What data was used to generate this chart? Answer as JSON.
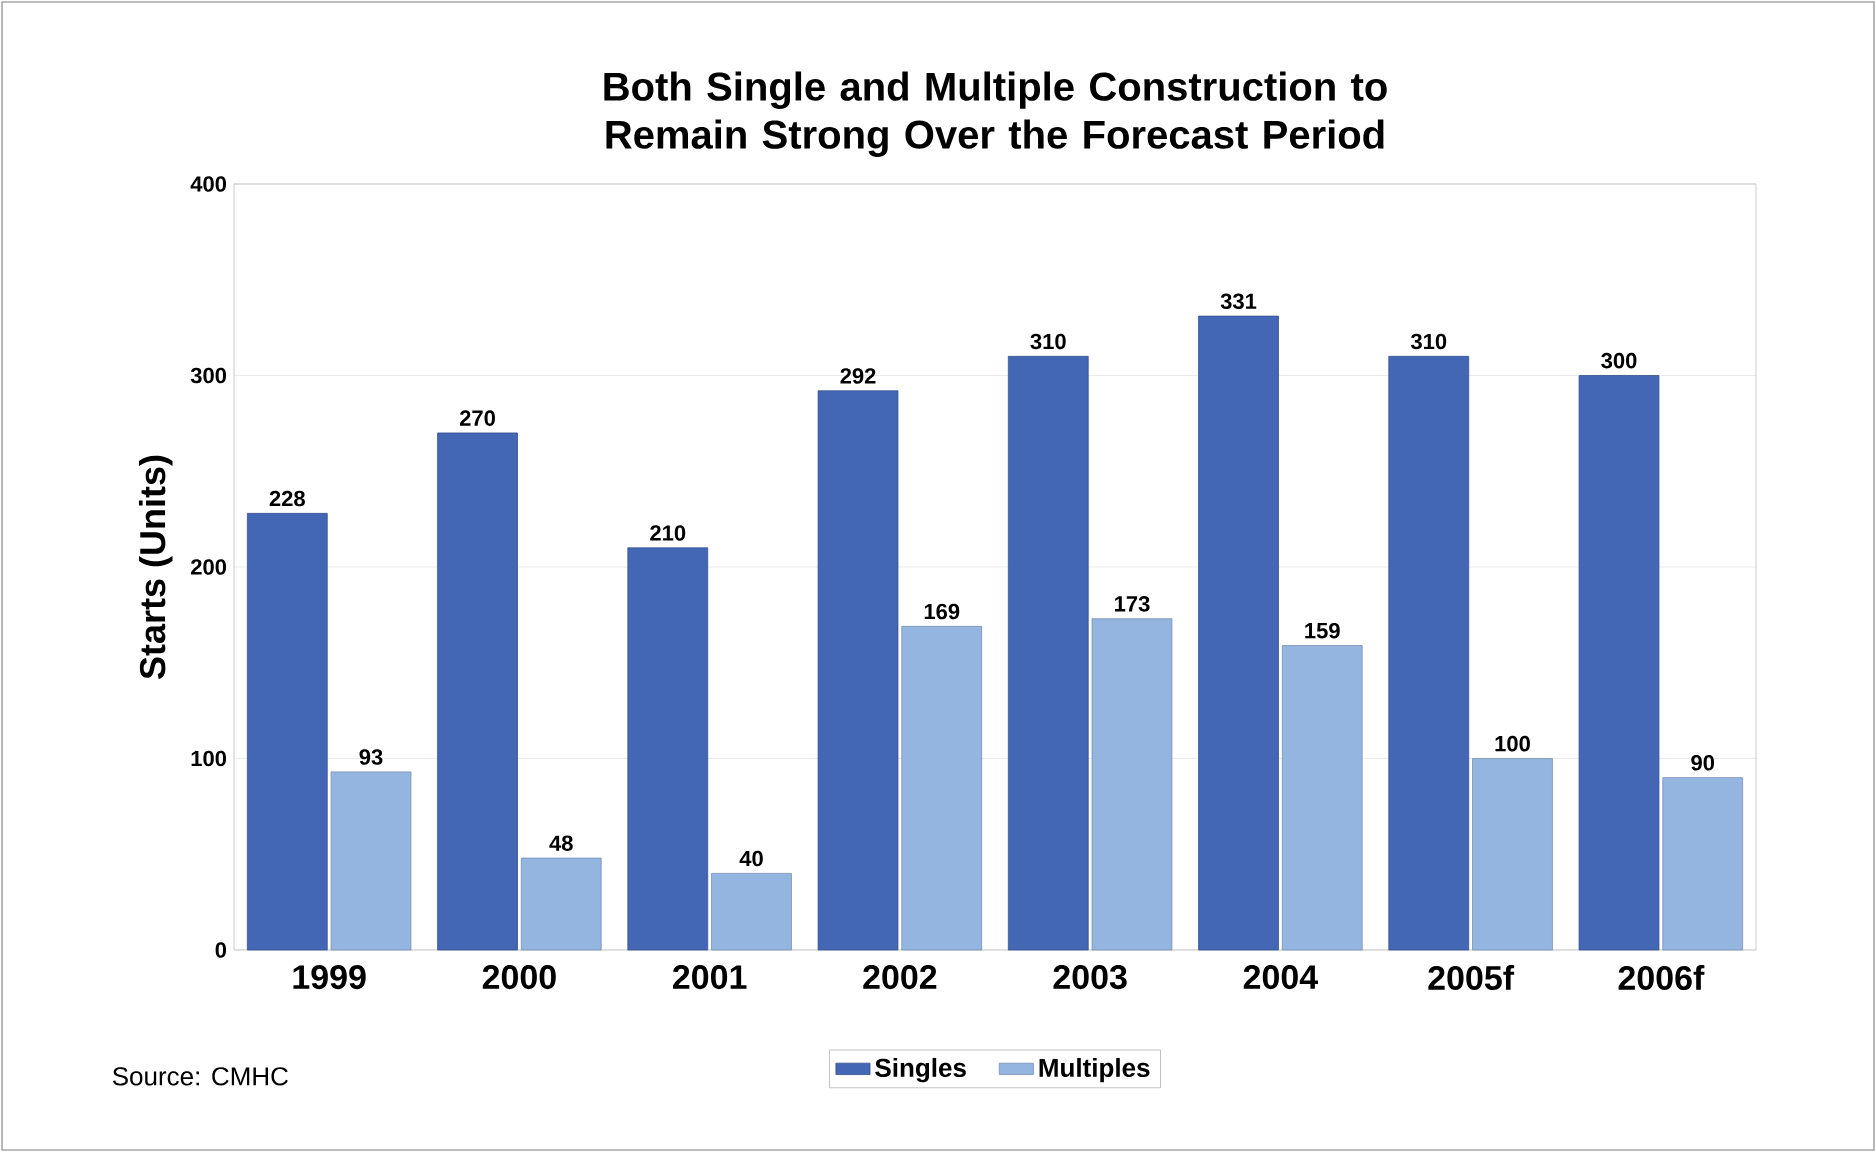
{
  "chart_data": {
    "type": "bar",
    "title": "Both Single and Multiple Construction to Remain Strong Over the Forecast Period",
    "ylabel": "Starts (Units)",
    "categories": [
      "1999",
      "2000",
      "2001",
      "2002",
      "2003",
      "2004",
      "2005f",
      "2006f"
    ],
    "series": [
      {
        "name": "Singles",
        "color": "#4467b5",
        "values": [
          228,
          270,
          210,
          292,
          310,
          331,
          310,
          300
        ]
      },
      {
        "name": "Multiples",
        "color": "#95b5e1",
        "values": [
          93,
          48,
          40,
          169,
          173,
          159,
          100,
          90
        ]
      }
    ],
    "ylim": [
      0,
      400
    ],
    "yticks": [
      0,
      100,
      200,
      300,
      400
    ],
    "grid": "y",
    "legend": "bottom",
    "data_labels": true,
    "annotations": [
      "Source: CMHC"
    ]
  }
}
